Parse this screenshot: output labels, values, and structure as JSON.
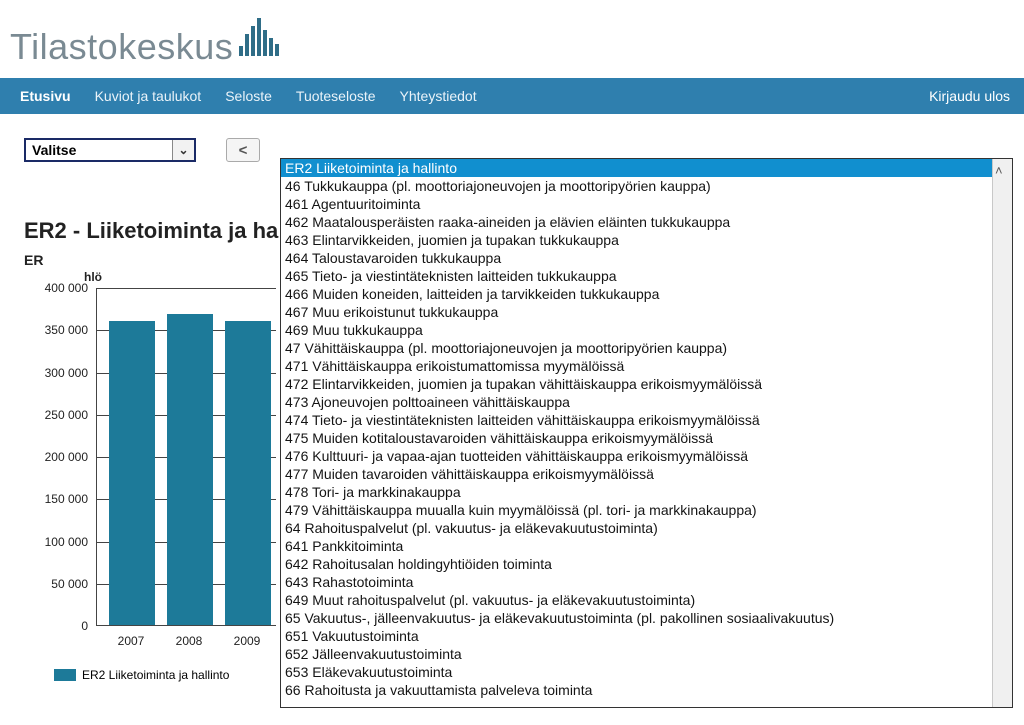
{
  "brand": {
    "name": "Tilastokeskus"
  },
  "nav": {
    "items": [
      "Etusivu",
      "Kuviot ja taulukot",
      "Seloste",
      "Tuoteseloste",
      "Yhteystiedot"
    ],
    "right": "Kirjaudu ulos",
    "bg": "#2f7fae"
  },
  "controls": {
    "select_label": "Valitse",
    "back_label": "<"
  },
  "chart": {
    "type": "bar",
    "title": "ER2 - Liiketoiminta ja ha",
    "subtitle_fragment": "ER",
    "y_unit": "hlö",
    "categories": [
      "2007",
      "2008",
      "2009"
    ],
    "values": [
      360000,
      368000,
      360000
    ],
    "bar_color": "#1d7a99",
    "ylim": [
      0,
      400000
    ],
    "ytick_step": 50000,
    "yticks": [
      "0",
      "50 000",
      "100 000",
      "150 000",
      "200 000",
      "250 000",
      "300 000",
      "350 000",
      "400 000"
    ],
    "legend_label": "ER2 Liiketoiminta ja hallinto",
    "background_color": "#ffffff",
    "axis_color": "#444444",
    "label_fontsize": 12,
    "title_fontsize": 22
  },
  "dropdown": {
    "selected_index": 0,
    "items": [
      "ER2 Liiketoiminta ja hallinto",
      "46 Tukkukauppa (pl. moottoriajoneuvojen ja moottoripyörien kauppa)",
      "461 Agentuuritoiminta",
      "462 Maatalousperäisten raaka-aineiden ja elävien eläinten tukkukauppa",
      "463 Elintarvikkeiden, juomien ja tupakan tukkukauppa",
      "464 Taloustavaroiden tukkukauppa",
      "465 Tieto- ja viestintäteknisten laitteiden tukkukauppa",
      "466 Muiden koneiden, laitteiden ja tarvikkeiden tukkukauppa",
      "467 Muu erikoistunut tukkukauppa",
      "469 Muu tukkukauppa",
      "47 Vähittäiskauppa (pl. moottoriajoneuvojen ja moottoripyörien kauppa)",
      "471 Vähittäiskauppa erikoistumattomissa myymälöissä",
      "472 Elintarvikkeiden, juomien ja tupakan vähittäiskauppa erikoismyymälöissä",
      "473 Ajoneuvojen polttoaineen vähittäiskauppa",
      "474 Tieto- ja viestintäteknisten laitteiden vähittäiskauppa erikoismyymälöissä",
      "475 Muiden kotitaloustavaroiden vähittäiskauppa erikoismyymälöissä",
      "476 Kulttuuri- ja vapaa-ajan tuotteiden vähittäiskauppa erikoismyymälöissä",
      "477 Muiden tavaroiden vähittäiskauppa erikoismyymälöissä",
      "478 Tori- ja markkinakauppa",
      "479 Vähittäiskauppa muualla kuin myymälöissä (pl. tori- ja markkinakauppa)",
      "64 Rahoituspalvelut (pl. vakuutus- ja eläkevakuutustoiminta)",
      "641 Pankkitoiminta",
      "642 Rahoitusalan holdingyhtiöiden toiminta",
      "643 Rahastotoiminta",
      "649 Muut rahoituspalvelut (pl. vakuutus- ja eläkevakuutustoiminta)",
      "65 Vakuutus-, jälleenvakuutus- ja eläkevakuutustoiminta (pl. pakollinen sosiaalivakuutus)",
      "651 Vakuutustoiminta",
      "652 Jälleenvakuutustoiminta",
      "653 Eläkevakuutustoiminta",
      "66 Rahoitusta ja vakuuttamista palveleva toiminta"
    ]
  }
}
